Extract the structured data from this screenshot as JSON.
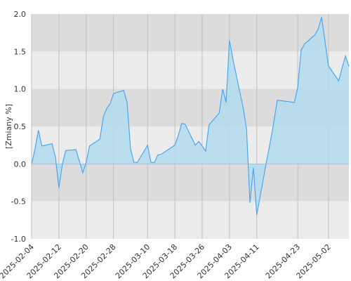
{
  "chart_data": {
    "type": "area",
    "ylabel": "[Zmiany %]",
    "ylim": [
      -1.0,
      2.0
    ],
    "y_ticks": [
      "2.0",
      "1.5",
      "1.0",
      "0.5",
      "0.0",
      "-0.5",
      "-1.0"
    ],
    "y_tick_values": [
      2.0,
      1.5,
      1.0,
      0.5,
      0.0,
      -0.5,
      -1.0
    ],
    "x_range": [
      "2025-02-04",
      "2025-05-08"
    ],
    "x_ticks": [
      "2025-02-04",
      "2025-02-12",
      "2025-02-20",
      "2025-02-28",
      "2025-03-10",
      "2025-03-18",
      "2025-03-26",
      "2025-04-03",
      "2025-04-11",
      "2025-04-23",
      "2025-05-02"
    ],
    "grid": true,
    "band_colors": [
      "#dcdcdc",
      "#ececec"
    ],
    "line_color": "#4da6f0",
    "fill_color": "#b3dcef",
    "zero_line_color": "#87ceeb",
    "series": [
      {
        "x": [
          "2025-02-04",
          "2025-02-05",
          "2025-02-06",
          "2025-02-07",
          "2025-02-10",
          "2025-02-11",
          "2025-02-12",
          "2025-02-13",
          "2025-02-14",
          "2025-02-17",
          "2025-02-18",
          "2025-02-19",
          "2025-02-20",
          "2025-02-21",
          "2025-02-24",
          "2025-02-25",
          "2025-02-26",
          "2025-02-27",
          "2025-02-28",
          "2025-03-03",
          "2025-03-04",
          "2025-03-05",
          "2025-03-06",
          "2025-03-07",
          "2025-03-10",
          "2025-03-11",
          "2025-03-12",
          "2025-03-13",
          "2025-03-14",
          "2025-03-17",
          "2025-03-18",
          "2025-03-19",
          "2025-03-20",
          "2025-03-21",
          "2025-03-24",
          "2025-03-25",
          "2025-03-26",
          "2025-03-27",
          "2025-03-28",
          "2025-03-31",
          "2025-04-01",
          "2025-04-02",
          "2025-04-03",
          "2025-04-04",
          "2025-04-07",
          "2025-04-08",
          "2025-04-09",
          "2025-04-10",
          "2025-04-11",
          "2025-04-14",
          "2025-04-15",
          "2025-04-16",
          "2025-04-17",
          "2025-04-22",
          "2025-04-23",
          "2025-04-24",
          "2025-04-25",
          "2025-04-28",
          "2025-04-29",
          "2025-04-30",
          "2025-05-02",
          "2025-05-05",
          "2025-05-06",
          "2025-05-07",
          "2025-05-08"
        ],
        "values": [
          0.0,
          0.2,
          0.45,
          0.24,
          0.27,
          0.09,
          -0.32,
          -0.01,
          0.18,
          0.19,
          0.04,
          -0.12,
          0.02,
          0.24,
          0.33,
          0.62,
          0.74,
          0.8,
          0.94,
          0.98,
          0.82,
          0.2,
          0.02,
          0.02,
          0.25,
          0.02,
          0.02,
          0.12,
          0.13,
          0.22,
          0.25,
          0.38,
          0.54,
          0.53,
          0.25,
          0.3,
          0.24,
          0.17,
          0.52,
          0.68,
          1.0,
          0.82,
          1.65,
          1.4,
          0.75,
          0.47,
          -0.52,
          -0.05,
          -0.68,
          0.07,
          0.3,
          0.56,
          0.85,
          0.82,
          1.02,
          1.52,
          1.6,
          1.72,
          1.8,
          1.96,
          1.31,
          1.11,
          1.28,
          1.44,
          1.3
        ]
      }
    ]
  }
}
